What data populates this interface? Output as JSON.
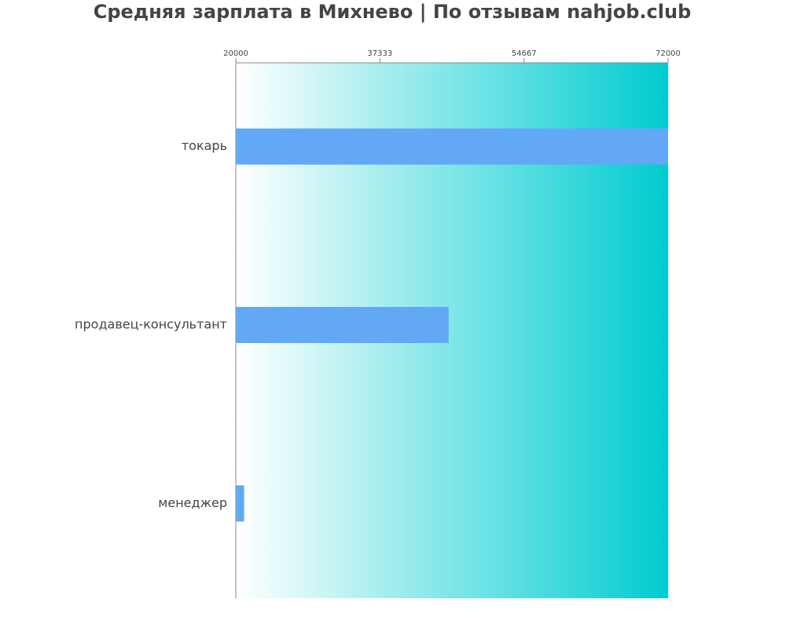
{
  "chart_data": {
    "type": "hbar",
    "title": "Средняя зарплата в Михнево | По отзывам nahjob.club",
    "categories": [
      "токарь",
      "продавец-консультант",
      "менеджер"
    ],
    "values": [
      72000,
      45600,
      21000
    ],
    "color": "#62a8f4",
    "xlim": [
      20000,
      72000
    ],
    "xticks": [
      20000,
      37333,
      54667,
      72000
    ]
  }
}
